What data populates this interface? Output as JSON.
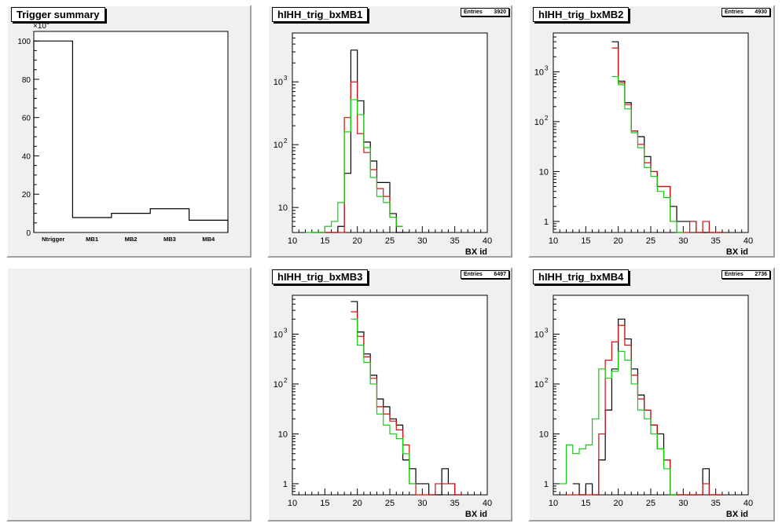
{
  "colors": {
    "black": "#000000",
    "red": "#d01010",
    "green": "#10d010",
    "pad_bg": "#f0f0f0"
  },
  "summary": {
    "title": "Trigger summary",
    "exponent": "×10",
    "exponent_power": "3",
    "chart_data": {
      "type": "bar",
      "title": "Trigger summary",
      "categories": [
        "Ntrigger",
        "MB1",
        "MB2",
        "MB3",
        "MB4"
      ],
      "values": [
        100,
        7.8,
        10,
        12.4,
        6.4
      ],
      "ylim": [
        0,
        105
      ],
      "yticks": [
        "0",
        "20",
        "40",
        "60",
        "80",
        "100"
      ],
      "yscale": "1e3"
    }
  },
  "panels": [
    {
      "title": "hIHH_trig_bxMB1",
      "stats_label": "Entries",
      "stats_value": "3920",
      "xlabel": "BX id",
      "xticks": [
        "10",
        "15",
        "20",
        "25",
        "30",
        "35",
        "40"
      ],
      "yticks": [
        "10",
        "10",
        "10"
      ],
      "ytick_powers": [
        "",
        "2",
        "3"
      ],
      "chart_data": {
        "type": "line",
        "xlim": [
          10,
          40
        ],
        "yscale": "log",
        "ylim": [
          4,
          6000
        ],
        "series": [
          {
            "color": "black",
            "x": [
              13,
              14,
              15,
              16,
              17,
              18,
              19,
              20,
              21,
              22,
              23,
              24,
              25,
              26,
              27
            ],
            "values": [
              4,
              4,
              4,
              4,
              5,
              35,
              3200,
              500,
              110,
              55,
              25,
              25,
              8,
              4,
              4
            ]
          },
          {
            "color": "red",
            "x": [
              14,
              15,
              16,
              17,
              18,
              19,
              20,
              21,
              22,
              23,
              24,
              25,
              26
            ],
            "values": [
              4,
              4,
              4,
              4,
              270,
              1000,
              150,
              75,
              40,
              20,
              15,
              7,
              5
            ]
          },
          {
            "color": "green",
            "x": [
              12,
              13,
              14,
              15,
              16,
              17,
              18,
              19,
              20,
              21,
              22,
              23,
              24,
              25,
              26
            ],
            "values": [
              4,
              4,
              4,
              5,
              6,
              12,
              160,
              520,
              300,
              90,
              30,
              15,
              12,
              7,
              5
            ]
          }
        ]
      }
    },
    {
      "title": "hIHH_trig_bxMB2",
      "stats_label": "Entries",
      "stats_value": "4930",
      "xlabel": "BX id",
      "xticks": [
        "10",
        "15",
        "20",
        "25",
        "30",
        "35",
        "40"
      ],
      "yticks": [
        "1",
        "10",
        "10",
        "10"
      ],
      "ytick_powers": [
        "",
        "",
        "2",
        "3"
      ],
      "chart_data": {
        "type": "line",
        "xlim": [
          10,
          40
        ],
        "yscale": "log",
        "ylim": [
          0.6,
          6000
        ],
        "series": [
          {
            "color": "black",
            "x": [
              19,
              20,
              21,
              22,
              23,
              24,
              25,
              26,
              27,
              28,
              29,
              30,
              31,
              32,
              33,
              34,
              35
            ],
            "values": [
              4000,
              650,
              240,
              65,
              50,
              20,
              10,
              5,
              5,
              2,
              1,
              1,
              1,
              0.6,
              0.6,
              0.6,
              0.6
            ]
          },
          {
            "color": "red",
            "x": [
              19,
              20,
              21,
              22,
              23,
              24,
              25,
              26,
              27,
              28,
              29,
              30,
              31,
              32,
              33,
              34,
              35
            ],
            "values": [
              3000,
              600,
              220,
              65,
              35,
              15,
              10,
              5,
              5,
              1,
              0.6,
              0.6,
              1,
              0.6,
              1,
              0.6,
              0.6
            ]
          },
          {
            "color": "green",
            "x": [
              19,
              20,
              21,
              22,
              23,
              24,
              25,
              26,
              27,
              28,
              29
            ],
            "values": [
              800,
              550,
              180,
              60,
              30,
              12,
              8,
              4,
              3,
              1,
              0.6
            ]
          }
        ]
      }
    },
    {
      "title": "hIHH_trig_bxMB3",
      "stats_label": "Entries",
      "stats_value": "6497",
      "xlabel": "BX id",
      "xticks": [
        "10",
        "15",
        "20",
        "25",
        "30",
        "35",
        "40"
      ],
      "yticks": [
        "1",
        "10",
        "10",
        "10"
      ],
      "ytick_powers": [
        "",
        "",
        "2",
        "3"
      ],
      "chart_data": {
        "type": "line",
        "xlim": [
          10,
          40
        ],
        "yscale": "log",
        "ylim": [
          0.6,
          6000
        ],
        "series": [
          {
            "color": "black",
            "x": [
              19,
              20,
              21,
              22,
              23,
              24,
              25,
              26,
              27,
              28,
              29,
              30,
              31,
              32,
              33,
              34,
              35
            ],
            "values": [
              4500,
              1100,
              400,
              150,
              50,
              35,
              20,
              15,
              3,
              2,
              1,
              1,
              0.6,
              0.6,
              2,
              1,
              0.6
            ]
          },
          {
            "color": "red",
            "x": [
              19,
              20,
              21,
              22,
              23,
              24,
              25,
              26,
              27,
              28,
              29,
              30,
              31,
              32,
              33,
              34,
              35
            ],
            "values": [
              2800,
              900,
              350,
              130,
              35,
              25,
              18,
              12,
              6,
              1,
              0.6,
              0.6,
              0.6,
              1,
              1,
              1,
              0.6
            ]
          },
          {
            "color": "green",
            "x": [
              19,
              20,
              21,
              22,
              23,
              24,
              25,
              26,
              27,
              28
            ],
            "values": [
              2000,
              600,
              270,
              100,
              25,
              15,
              10,
              8,
              4,
              1
            ]
          }
        ]
      }
    },
    {
      "title": "hIHH_trig_bxMB4",
      "stats_label": "Entries",
      "stats_value": "2736",
      "xlabel": "BX id",
      "xticks": [
        "10",
        "15",
        "20",
        "25",
        "30",
        "35",
        "40"
      ],
      "yticks": [
        "1",
        "10",
        "10",
        "10"
      ],
      "ytick_powers": [
        "",
        "",
        "2",
        "3"
      ],
      "chart_data": {
        "type": "line",
        "xlim": [
          10,
          40
        ],
        "yscale": "log",
        "ylim": [
          0.6,
          6000
        ],
        "series": [
          {
            "color": "black",
            "x": [
              13,
              14,
              15,
              16,
              17,
              18,
              19,
              20,
              21,
              22,
              23,
              24,
              25,
              26,
              27,
              28,
              29,
              30,
              31,
              32,
              33,
              34,
              35
            ],
            "values": [
              1,
              0.6,
              1,
              0.6,
              3,
              30,
              200,
              2000,
              800,
              200,
              60,
              30,
              15,
              10,
              3,
              0.6,
              0.6,
              0.6,
              0.6,
              0.6,
              2,
              0.6,
              0.6
            ]
          },
          {
            "color": "red",
            "x": [
              12,
              13,
              14,
              15,
              16,
              17,
              18,
              19,
              20,
              21,
              22,
              23,
              24,
              25,
              26,
              27,
              28,
              29,
              30,
              31,
              32,
              33,
              34,
              35
            ],
            "values": [
              0.6,
              0.6,
              0.6,
              0.6,
              0.6,
              10,
              300,
              700,
              1500,
              600,
              150,
              50,
              30,
              15,
              5,
              3,
              0.6,
              0.6,
              0.6,
              0.6,
              0.6,
              1,
              0.6,
              0.6
            ]
          },
          {
            "color": "green",
            "x": [
              11,
              12,
              13,
              14,
              15,
              16,
              17,
              18,
              19,
              20,
              21,
              22,
              23,
              24,
              25,
              26,
              27,
              28
            ],
            "values": [
              1,
              6,
              4,
              5,
              6,
              20,
              200,
              130,
              180,
              450,
              300,
              100,
              30,
              20,
              10,
              5,
              2,
              0.6
            ]
          }
        ]
      }
    }
  ]
}
